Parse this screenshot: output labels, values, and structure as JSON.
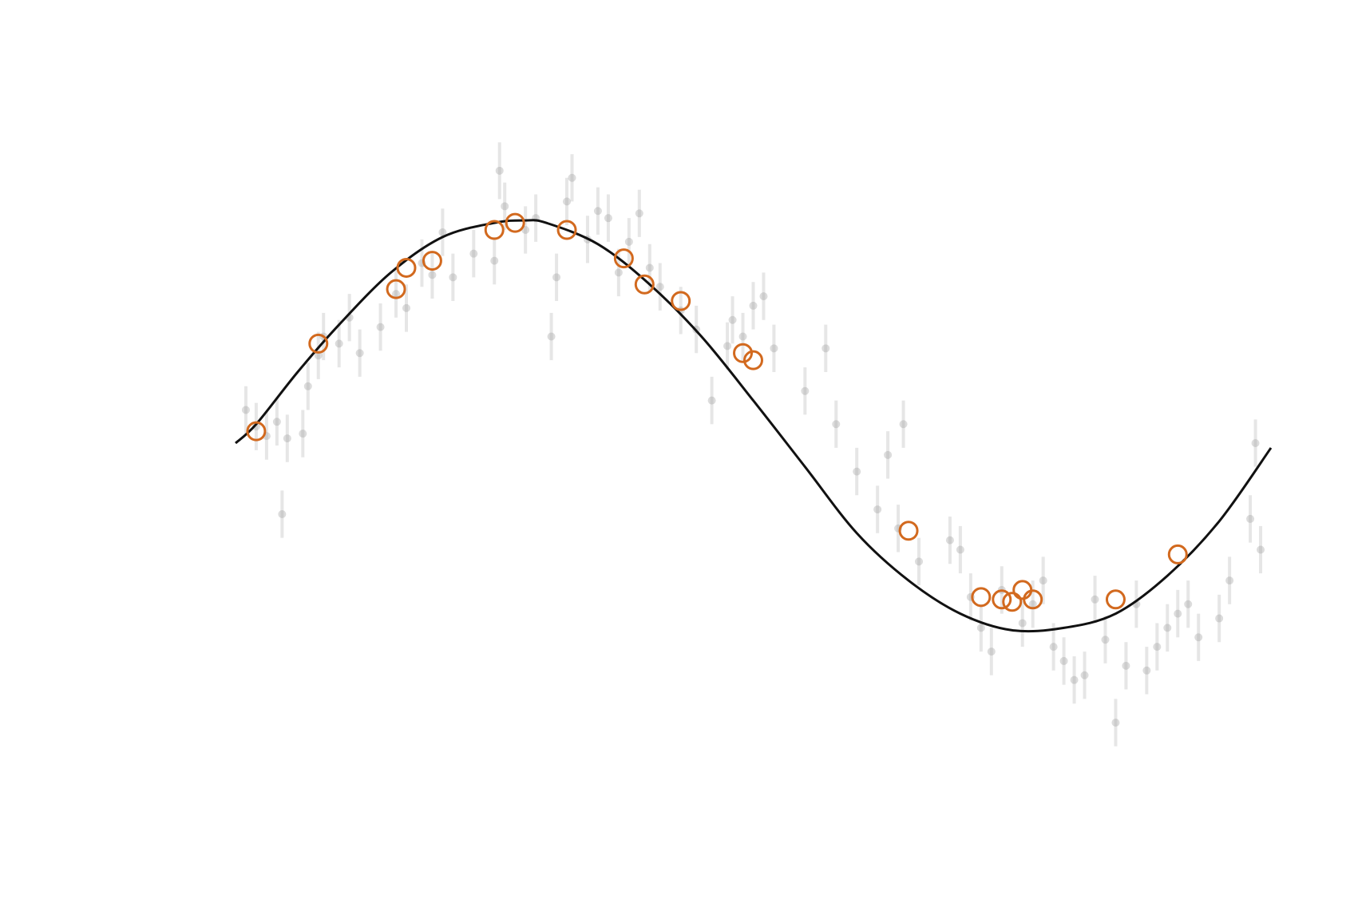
{
  "chart_data": {
    "type": "scatter",
    "title": "",
    "xlabel": "",
    "ylabel": "",
    "xlim": [
      0,
      1
    ],
    "ylim": [
      -1.5,
      1.5
    ],
    "grid": false,
    "axes_visible": false,
    "colors": {
      "curve": "#111111",
      "highlight": "#d2691e",
      "background_points": "#9a9a9a"
    },
    "curve": {
      "model": "periodic",
      "x": [
        0.0,
        0.02,
        0.06,
        0.1,
        0.15,
        0.2,
        0.25,
        0.28,
        0.3,
        0.35,
        0.4,
        0.45,
        0.5,
        0.55,
        0.6,
        0.65,
        0.7,
        0.75,
        0.8,
        0.85,
        0.9,
        0.95,
        1.0
      ],
      "y": [
        0.0,
        0.08,
        0.3,
        0.5,
        0.72,
        0.87,
        0.93,
        0.94,
        0.93,
        0.84,
        0.67,
        0.45,
        0.18,
        -0.1,
        -0.38,
        -0.58,
        -0.72,
        -0.79,
        -0.78,
        -0.72,
        -0.56,
        -0.33,
        -0.02
      ]
    },
    "background_series": [
      {
        "x": 0.01,
        "y": 0.14,
        "err": 0.1
      },
      {
        "x": 0.02,
        "y": 0.07,
        "err": 0.1
      },
      {
        "x": 0.03,
        "y": 0.03,
        "err": 0.1
      },
      {
        "x": 0.04,
        "y": 0.09,
        "err": 0.1
      },
      {
        "x": 0.045,
        "y": -0.3,
        "err": 0.1
      },
      {
        "x": 0.05,
        "y": 0.02,
        "err": 0.1
      },
      {
        "x": 0.065,
        "y": 0.04,
        "err": 0.1
      },
      {
        "x": 0.07,
        "y": 0.24,
        "err": 0.1
      },
      {
        "x": 0.08,
        "y": 0.37,
        "err": 0.1
      },
      {
        "x": 0.085,
        "y": 0.45,
        "err": 0.1
      },
      {
        "x": 0.1,
        "y": 0.42,
        "err": 0.1
      },
      {
        "x": 0.11,
        "y": 0.53,
        "err": 0.1
      },
      {
        "x": 0.12,
        "y": 0.38,
        "err": 0.1
      },
      {
        "x": 0.14,
        "y": 0.49,
        "err": 0.1
      },
      {
        "x": 0.155,
        "y": 0.63,
        "err": 0.1
      },
      {
        "x": 0.165,
        "y": 0.57,
        "err": 0.1
      },
      {
        "x": 0.18,
        "y": 0.76,
        "err": 0.1
      },
      {
        "x": 0.19,
        "y": 0.71,
        "err": 0.1
      },
      {
        "x": 0.2,
        "y": 0.89,
        "err": 0.1
      },
      {
        "x": 0.21,
        "y": 0.7,
        "err": 0.1
      },
      {
        "x": 0.23,
        "y": 0.8,
        "err": 0.1
      },
      {
        "x": 0.25,
        "y": 0.77,
        "err": 0.1
      },
      {
        "x": 0.255,
        "y": 1.15,
        "err": 0.12
      },
      {
        "x": 0.26,
        "y": 1.0,
        "err": 0.1
      },
      {
        "x": 0.28,
        "y": 0.9,
        "err": 0.1
      },
      {
        "x": 0.29,
        "y": 0.95,
        "err": 0.1
      },
      {
        "x": 0.305,
        "y": 0.45,
        "err": 0.1
      },
      {
        "x": 0.31,
        "y": 0.7,
        "err": 0.1
      },
      {
        "x": 0.32,
        "y": 1.02,
        "err": 0.1
      },
      {
        "x": 0.325,
        "y": 1.12,
        "err": 0.1
      },
      {
        "x": 0.34,
        "y": 0.86,
        "err": 0.1
      },
      {
        "x": 0.35,
        "y": 0.98,
        "err": 0.1
      },
      {
        "x": 0.36,
        "y": 0.95,
        "err": 0.1
      },
      {
        "x": 0.37,
        "y": 0.72,
        "err": 0.1
      },
      {
        "x": 0.38,
        "y": 0.85,
        "err": 0.1
      },
      {
        "x": 0.39,
        "y": 0.97,
        "err": 0.1
      },
      {
        "x": 0.4,
        "y": 0.74,
        "err": 0.1
      },
      {
        "x": 0.41,
        "y": 0.66,
        "err": 0.1
      },
      {
        "x": 0.43,
        "y": 0.56,
        "err": 0.1
      },
      {
        "x": 0.445,
        "y": 0.48,
        "err": 0.1
      },
      {
        "x": 0.46,
        "y": 0.18,
        "err": 0.1
      },
      {
        "x": 0.475,
        "y": 0.41,
        "err": 0.1
      },
      {
        "x": 0.48,
        "y": 0.52,
        "err": 0.1
      },
      {
        "x": 0.49,
        "y": 0.45,
        "err": 0.1
      },
      {
        "x": 0.5,
        "y": 0.58,
        "err": 0.1
      },
      {
        "x": 0.51,
        "y": 0.62,
        "err": 0.1
      },
      {
        "x": 0.52,
        "y": 0.4,
        "err": 0.1
      },
      {
        "x": 0.55,
        "y": 0.22,
        "err": 0.1
      },
      {
        "x": 0.57,
        "y": 0.4,
        "err": 0.1
      },
      {
        "x": 0.58,
        "y": 0.08,
        "err": 0.1
      },
      {
        "x": 0.6,
        "y": -0.12,
        "err": 0.1
      },
      {
        "x": 0.62,
        "y": -0.28,
        "err": 0.1
      },
      {
        "x": 0.63,
        "y": -0.05,
        "err": 0.1
      },
      {
        "x": 0.64,
        "y": -0.36,
        "err": 0.1
      },
      {
        "x": 0.645,
        "y": 0.08,
        "err": 0.1
      },
      {
        "x": 0.66,
        "y": -0.5,
        "err": 0.1
      },
      {
        "x": 0.69,
        "y": -0.41,
        "err": 0.1
      },
      {
        "x": 0.7,
        "y": -0.45,
        "err": 0.1
      },
      {
        "x": 0.71,
        "y": -0.65,
        "err": 0.1
      },
      {
        "x": 0.72,
        "y": -0.78,
        "err": 0.1
      },
      {
        "x": 0.73,
        "y": -0.88,
        "err": 0.1
      },
      {
        "x": 0.74,
        "y": -0.62,
        "err": 0.1
      },
      {
        "x": 0.76,
        "y": -0.76,
        "err": 0.1
      },
      {
        "x": 0.77,
        "y": -0.68,
        "err": 0.1
      },
      {
        "x": 0.78,
        "y": -0.58,
        "err": 0.1
      },
      {
        "x": 0.79,
        "y": -0.86,
        "err": 0.1
      },
      {
        "x": 0.8,
        "y": -0.92,
        "err": 0.1
      },
      {
        "x": 0.81,
        "y": -1.0,
        "err": 0.1
      },
      {
        "x": 0.82,
        "y": -0.98,
        "err": 0.1
      },
      {
        "x": 0.83,
        "y": -0.66,
        "err": 0.1
      },
      {
        "x": 0.84,
        "y": -0.83,
        "err": 0.1
      },
      {
        "x": 0.85,
        "y": -1.18,
        "err": 0.1
      },
      {
        "x": 0.86,
        "y": -0.94,
        "err": 0.1
      },
      {
        "x": 0.87,
        "y": -0.68,
        "err": 0.1
      },
      {
        "x": 0.88,
        "y": -0.96,
        "err": 0.1
      },
      {
        "x": 0.89,
        "y": -0.86,
        "err": 0.1
      },
      {
        "x": 0.9,
        "y": -0.78,
        "err": 0.1
      },
      {
        "x": 0.91,
        "y": -0.72,
        "err": 0.1
      },
      {
        "x": 0.92,
        "y": -0.68,
        "err": 0.1
      },
      {
        "x": 0.93,
        "y": -0.82,
        "err": 0.1
      },
      {
        "x": 0.95,
        "y": -0.74,
        "err": 0.1
      },
      {
        "x": 0.96,
        "y": -0.58,
        "err": 0.1
      },
      {
        "x": 0.98,
        "y": -0.32,
        "err": 0.1
      },
      {
        "x": 0.985,
        "y": 0.0,
        "err": 0.1
      },
      {
        "x": 0.99,
        "y": -0.45,
        "err": 0.1
      }
    ],
    "highlight_series": [
      {
        "x": 0.02,
        "y": 0.05
      },
      {
        "x": 0.08,
        "y": 0.42
      },
      {
        "x": 0.155,
        "y": 0.65
      },
      {
        "x": 0.165,
        "y": 0.74
      },
      {
        "x": 0.19,
        "y": 0.77
      },
      {
        "x": 0.25,
        "y": 0.9
      },
      {
        "x": 0.27,
        "y": 0.93
      },
      {
        "x": 0.32,
        "y": 0.9
      },
      {
        "x": 0.375,
        "y": 0.78
      },
      {
        "x": 0.395,
        "y": 0.67
      },
      {
        "x": 0.43,
        "y": 0.6
      },
      {
        "x": 0.49,
        "y": 0.38
      },
      {
        "x": 0.5,
        "y": 0.35
      },
      {
        "x": 0.65,
        "y": -0.37
      },
      {
        "x": 0.72,
        "y": -0.65
      },
      {
        "x": 0.74,
        "y": -0.66
      },
      {
        "x": 0.75,
        "y": -0.67
      },
      {
        "x": 0.76,
        "y": -0.62
      },
      {
        "x": 0.77,
        "y": -0.66
      },
      {
        "x": 0.85,
        "y": -0.66
      },
      {
        "x": 0.91,
        "y": -0.47
      }
    ]
  }
}
